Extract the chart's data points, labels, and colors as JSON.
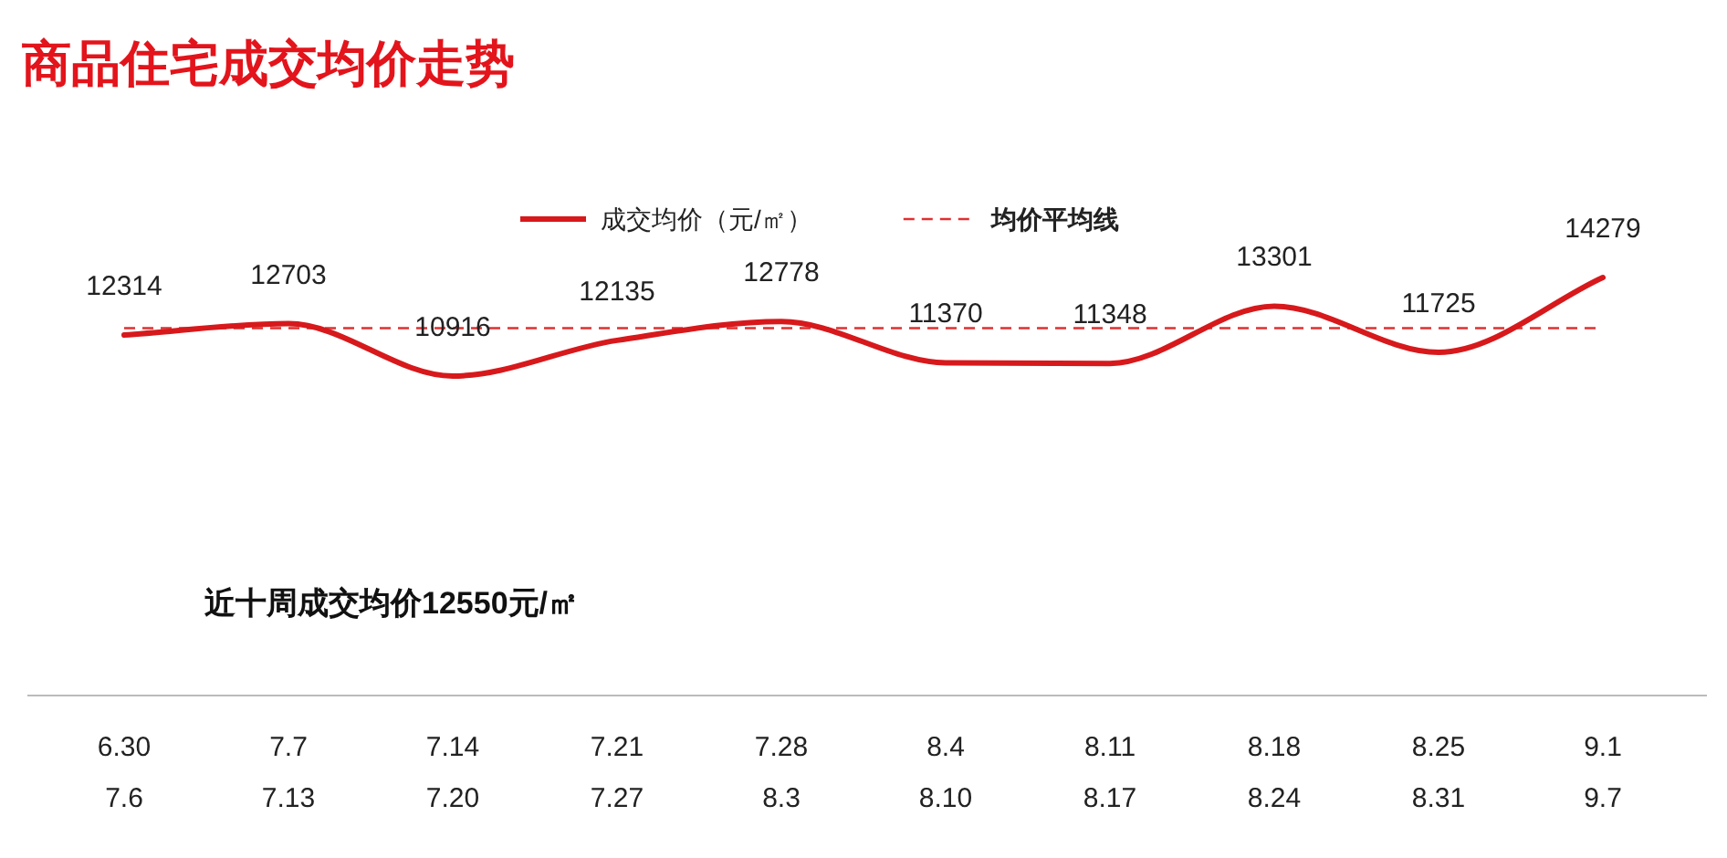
{
  "chart_data": {
    "type": "line",
    "title": "商品住宅成交均价走势",
    "categories": [
      "6.30\n7.6",
      "7.7\n7.13",
      "7.14\n7.20",
      "7.21\n7.27",
      "7.28\n8.3",
      "8.4\n8.10",
      "8.11\n8.17",
      "8.18\n8.24",
      "8.25\n8.31",
      "9.1\n9.7"
    ],
    "series": [
      {
        "name": "成交均价（元/㎡）",
        "color": "#d7191c",
        "values": [
          12314,
          12703,
          10916,
          12135,
          12778,
          11370,
          11348,
          13301,
          11725,
          14279
        ]
      }
    ],
    "ref_lines": [
      {
        "axis": "y",
        "value": 12550,
        "label": "均价平均线",
        "color": "#e03030",
        "line_style": "dashed"
      }
    ],
    "data_labels": true,
    "legend": "top",
    "annotations": [
      "近十周成交均价12550元/㎡"
    ]
  }
}
